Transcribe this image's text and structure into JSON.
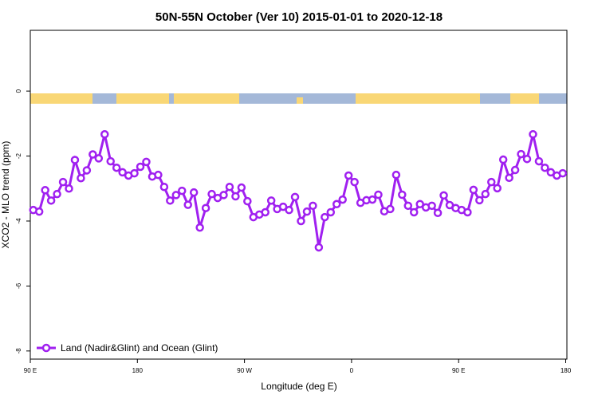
{
  "chart_data": {
    "type": "line",
    "title": "50N-55N October (Ver 10)   2015-01-01 to 2020-12-18",
    "x_label": "Longitude (deg E)",
    "y_label": "XCO2 - MLO trend (ppm)",
    "x": [
      92.5,
      97.5,
      102.5,
      107.5,
      112.5,
      117.5,
      122.5,
      127.5,
      132.5,
      137.5,
      142.5,
      147.5,
      152.5,
      157.5,
      162.5,
      167.5,
      172.5,
      177.5,
      182.5,
      187.5,
      192.5,
      197.5,
      202.5,
      207.5,
      212.5,
      217.5,
      222.5,
      227.5,
      232.5,
      237.5,
      242.5,
      247.5,
      252.5,
      257.5,
      262.5,
      267.5,
      272.5,
      277.5,
      282.5,
      287.5,
      292.5,
      297.5,
      302.5,
      307.5,
      312.5,
      317.5,
      322.5,
      327.5,
      332.5,
      337.5,
      342.5,
      347.5,
      352.5,
      357.5,
      362.5,
      367.5,
      372.5,
      377.5,
      382.5,
      387.5,
      392.5,
      397.5,
      402.5,
      407.5,
      412.5,
      417.5,
      422.5,
      427.5,
      432.5,
      437.5,
      442.5,
      447.5,
      452.5,
      457.5,
      462.5,
      467.5,
      472.5,
      477.5,
      482.5,
      487.5,
      492.5,
      497.5,
      502.5,
      507.5,
      512.5,
      517.5,
      522.5,
      527.5,
      532.5,
      537.5
    ],
    "series": [
      {
        "name": "Land (Nadir&Glint) and Ocean (Glint)",
        "color": "#a020f0",
        "values": [
          -3.66,
          -3.71,
          -3.05,
          -3.37,
          -3.17,
          -2.8,
          -3.0,
          -2.12,
          -2.68,
          -2.44,
          -1.95,
          -2.07,
          -1.33,
          -2.16,
          -2.36,
          -2.5,
          -2.6,
          -2.53,
          -2.33,
          -2.18,
          -2.63,
          -2.58,
          -2.95,
          -3.37,
          -3.2,
          -3.07,
          -3.5,
          -3.12,
          -4.2,
          -3.6,
          -3.17,
          -3.29,
          -3.2,
          -2.95,
          -3.24,
          -2.97,
          -3.39,
          -3.88,
          -3.8,
          -3.73,
          -3.37,
          -3.63,
          -3.56,
          -3.66,
          -3.26,
          -4.0,
          -3.71,
          -3.53,
          -4.81,
          -3.88,
          -3.73,
          -3.48,
          -3.34,
          -2.6,
          -2.8,
          -3.44,
          -3.36,
          -3.34,
          -3.19,
          -3.7,
          -3.63,
          -2.58,
          -3.19,
          -3.53,
          -3.73,
          -3.48,
          -3.58,
          -3.53,
          -3.75,
          -3.21,
          -3.51,
          -3.6,
          -3.66,
          -3.73,
          -3.04,
          -3.36,
          -3.17,
          -2.8,
          -2.99,
          -2.11,
          -2.67,
          -2.43,
          -1.94,
          -2.09,
          -1.33,
          -2.16,
          -2.36,
          -2.5,
          -2.6,
          -2.53
        ]
      }
    ],
    "xlim": [
      90,
      541
    ],
    "xticks": [
      {
        "value": 90,
        "label": "90 E"
      },
      {
        "value": 180,
        "label": "180"
      },
      {
        "value": 270,
        "label": "90 W"
      },
      {
        "value": 360,
        "label": "0"
      },
      {
        "value": 450,
        "label": "90 E"
      },
      {
        "value": 540,
        "label": "180"
      }
    ],
    "ylim": [
      -8.25,
      1.87
    ],
    "yticks": [
      0,
      -2,
      -4,
      -6,
      -8
    ],
    "legend": "bottomleft"
  }
}
